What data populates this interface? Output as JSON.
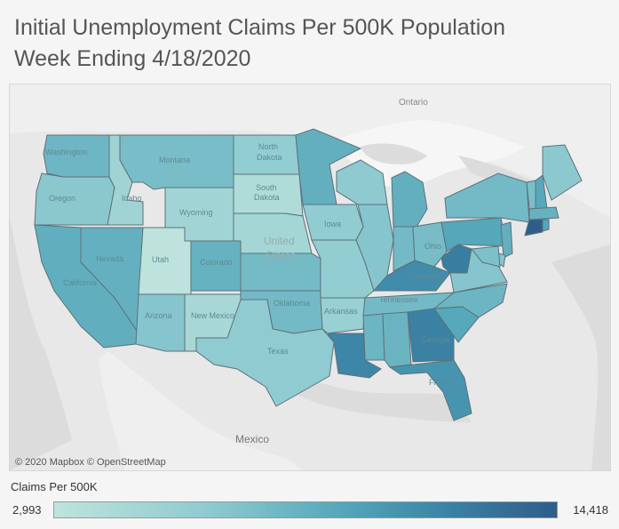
{
  "title": {
    "line1": "Initial Unemployment Claims Per 500K Population",
    "line2": "Week Ending 4/18/2020"
  },
  "map": {
    "attribution": "© 2020 Mapbox © OpenStreetMap",
    "basemap_labels": {
      "ontario": "Ontario",
      "united_states_1": "United",
      "united_states_2": "States",
      "mexico": "Mexico"
    },
    "state_labels": {
      "washington": "Washington",
      "oregon": "Oregon",
      "idaho": "Idaho",
      "montana": "Montana",
      "wyoming": "Wyoming",
      "north_dakota_1": "North",
      "north_dakota_2": "Dakota",
      "south_dakota_1": "South",
      "south_dakota_2": "Dakota",
      "utah": "Utah",
      "colorado": "Colorado",
      "nevada": "Nevada",
      "california": "California",
      "arizona": "Arizona",
      "new_mexico": "New Mexico",
      "oklahoma": "Oklahoma",
      "texas": "Texas",
      "iowa": "Iowa",
      "arkansas": "Arkansas",
      "ohio": "Ohio",
      "kentucky": "Kentucky",
      "tennessee": "Tennessee",
      "georgia": "Georgia",
      "florida": "Florida"
    }
  },
  "legend": {
    "title": "Claims Per 500K",
    "min_label": "2,993",
    "max_label": "14,418",
    "min_value": 2993,
    "max_value": 14418,
    "color_low": "#bfe3dc",
    "color_high": "#2f5d8a"
  },
  "state_claims_per_500k": {
    "Washington": 8200,
    "Oregon": 6700,
    "Idaho": 5300,
    "Montana": 7600,
    "Wyoming": 5100,
    "North Dakota": 6200,
    "South Dakota": 4100,
    "Nevada": 8700,
    "Utah": 3100,
    "Colorado": 8600,
    "California": 8900,
    "Arizona": 6900,
    "New Mexico": 4600,
    "Nebraska": 4900,
    "Kansas": 7800,
    "Oklahoma": 7900,
    "Texas": 6400,
    "Minnesota": 8800,
    "Iowa": 6300,
    "Missouri": 6200,
    "Arkansas": 5700,
    "Louisiana": 11700,
    "Wisconsin": 6500,
    "Illinois": 6900,
    "Michigan": 8800,
    "Indiana": 7900,
    "Ohio": 7700,
    "Kentucky": 11300,
    "Tennessee": 7900,
    "Mississippi": 8300,
    "Alabama": 8400,
    "Georgia": 12000,
    "Florida": 10800,
    "South Carolina": 9400,
    "North Carolina": 8300,
    "Virginia": 6900,
    "West Virginia": 12300,
    "Pennsylvania": 9500,
    "New York": 7900,
    "Vermont": 7500,
    "New Hampshire": 9400,
    "Maine": 6600,
    "Massachusetts": 8600,
    "Rhode Island": 9500,
    "Connecticut": 14418,
    "New Jersey": 8800,
    "Delaware": 6900,
    "Maryland": 7400
  }
}
